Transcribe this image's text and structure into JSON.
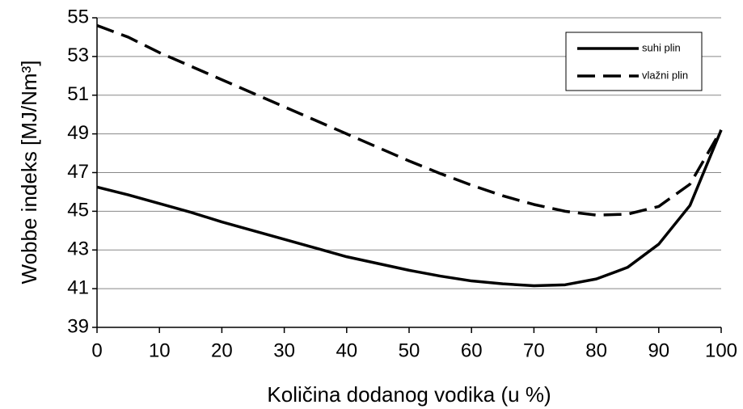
{
  "chart_data": {
    "type": "line",
    "x": [
      0,
      5,
      10,
      15,
      20,
      25,
      30,
      35,
      40,
      45,
      50,
      55,
      60,
      65,
      70,
      75,
      80,
      85,
      90,
      95,
      100
    ],
    "series": [
      {
        "name": "suhi plin",
        "color": "#000000",
        "style": "solid",
        "values": [
          46.25,
          45.85,
          45.4,
          44.95,
          44.45,
          44.0,
          43.55,
          43.1,
          42.65,
          42.3,
          41.95,
          41.65,
          41.4,
          41.25,
          41.15,
          41.2,
          41.5,
          42.1,
          43.3,
          45.3,
          49.2
        ]
      },
      {
        "name": "vlažni plin",
        "color": "#000000",
        "style": "dashed",
        "values": [
          54.6,
          54.0,
          53.2,
          52.5,
          51.8,
          51.1,
          50.4,
          49.7,
          49.0,
          48.3,
          47.6,
          46.95,
          46.35,
          45.8,
          45.35,
          45.0,
          44.8,
          44.85,
          45.25,
          46.4,
          49.2
        ]
      }
    ],
    "xlabel": "Količina dodanog vodika (u %)",
    "ylabel": "Wobbe indeks [MJ/Nm³]",
    "xlim": [
      0,
      100
    ],
    "xticks": [
      0,
      10,
      20,
      30,
      40,
      50,
      60,
      70,
      80,
      90,
      100
    ],
    "ylim": [
      39,
      55
    ],
    "yticks": [
      39,
      41,
      43,
      45,
      47,
      49,
      51,
      53,
      55
    ],
    "grid": true,
    "legend": "upper right"
  }
}
